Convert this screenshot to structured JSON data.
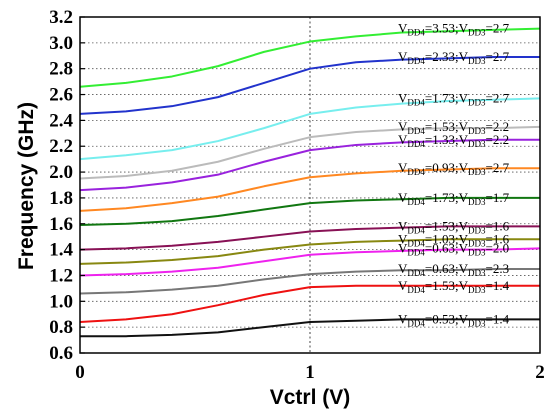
{
  "chart_data": {
    "type": "line",
    "xlabel": "Vctrl (V)",
    "ylabel": "Frequency (GHz)",
    "xlim": [
      0,
      2
    ],
    "ylim": [
      0.6,
      3.2
    ],
    "xticks": [
      "0",
      "1",
      "2"
    ],
    "yticks": [
      "0.6",
      "0.8",
      "1.0",
      "1.2",
      "1.4",
      "1.6",
      "1.8",
      "2.0",
      "2.2",
      "2.4",
      "2.6",
      "2.8",
      "3.0",
      "3.2"
    ],
    "grid": "dotted",
    "reference_line_x": 1,
    "series": [
      {
        "label": "VDD4=3.53;VDD3=2.7",
        "vdd4": "3.53",
        "vdd3": "2.7",
        "color": "#33ee33",
        "x": [
          0,
          0.2,
          0.4,
          0.6,
          0.8,
          1.0,
          1.2,
          1.4,
          1.6,
          1.8,
          2.0
        ],
        "y": [
          2.66,
          2.69,
          2.74,
          2.82,
          2.93,
          3.01,
          3.05,
          3.08,
          3.09,
          3.1,
          3.11
        ]
      },
      {
        "label": "VDD4=2.33;VDD3=2.7",
        "vdd4": "2.33",
        "vdd3": "2.7",
        "color": "#2233cc",
        "x": [
          0,
          0.2,
          0.4,
          0.6,
          0.8,
          1.0,
          1.2,
          1.4,
          1.6,
          1.8,
          2.0
        ],
        "y": [
          2.45,
          2.47,
          2.51,
          2.58,
          2.69,
          2.8,
          2.85,
          2.87,
          2.88,
          2.89,
          2.89
        ]
      },
      {
        "label": "VDD4=1.73;VDD3=2.7",
        "vdd4": "1.73",
        "vdd3": "2.7",
        "color": "#77eeee",
        "x": [
          0,
          0.2,
          0.4,
          0.6,
          0.8,
          1.0,
          1.2,
          1.4,
          1.6,
          1.8,
          2.0
        ],
        "y": [
          2.1,
          2.13,
          2.17,
          2.24,
          2.34,
          2.45,
          2.5,
          2.53,
          2.55,
          2.56,
          2.57
        ]
      },
      {
        "label": "VDD4=1.53;VDD3=2.2",
        "vdd4": "1.53",
        "vdd3": "2.2",
        "color": "#bbbbbb",
        "x": [
          0,
          0.2,
          0.4,
          0.6,
          0.8,
          1.0,
          1.2,
          1.4,
          1.6,
          1.8,
          2.0
        ],
        "y": [
          1.95,
          1.97,
          2.01,
          2.08,
          2.18,
          2.27,
          2.31,
          2.33,
          2.34,
          2.34,
          2.35
        ]
      },
      {
        "label": "VDD4=1.33;VDD3=2.2",
        "vdd4": "1.33",
        "vdd3": "2.2",
        "color": "#9922dd",
        "x": [
          0,
          0.2,
          0.4,
          0.6,
          0.8,
          1.0,
          1.2,
          1.4,
          1.6,
          1.8,
          2.0
        ],
        "y": [
          1.86,
          1.88,
          1.92,
          1.98,
          2.08,
          2.17,
          2.21,
          2.23,
          2.24,
          2.25,
          2.25
        ]
      },
      {
        "label": "VDD4=0.93;VDD3=2.7",
        "vdd4": "0.93",
        "vdd3": "2.7",
        "color": "#ff8822",
        "x": [
          0,
          0.2,
          0.4,
          0.6,
          0.8,
          1.0,
          1.2,
          1.4,
          1.6,
          1.8,
          2.0
        ],
        "y": [
          1.7,
          1.72,
          1.76,
          1.81,
          1.89,
          1.96,
          1.99,
          2.01,
          2.02,
          2.03,
          2.03
        ]
      },
      {
        "label": "VDD4=1.73;VDD3=1.7",
        "vdd4": "1.73",
        "vdd3": "1.7",
        "color": "#117711",
        "x": [
          0,
          0.2,
          0.4,
          0.6,
          0.8,
          1.0,
          1.2,
          1.4,
          1.6,
          1.8,
          2.0
        ],
        "y": [
          1.59,
          1.6,
          1.62,
          1.66,
          1.71,
          1.76,
          1.78,
          1.79,
          1.8,
          1.8,
          1.8
        ]
      },
      {
        "label": "VDD4=1.53;VDD3=1.6",
        "vdd4": "1.53",
        "vdd3": "1.6",
        "color": "#881155",
        "x": [
          0,
          0.2,
          0.4,
          0.6,
          0.8,
          1.0,
          1.2,
          1.4,
          1.6,
          1.8,
          2.0
        ],
        "y": [
          1.4,
          1.41,
          1.43,
          1.46,
          1.5,
          1.54,
          1.56,
          1.57,
          1.58,
          1.58,
          1.58
        ]
      },
      {
        "label": "VDD4=1.03;VDD3=1.6",
        "vdd4": "1.03",
        "vdd3": "1.6",
        "color": "#888811",
        "x": [
          0,
          0.2,
          0.4,
          0.6,
          0.8,
          1.0,
          1.2,
          1.4,
          1.6,
          1.8,
          2.0
        ],
        "y": [
          1.29,
          1.3,
          1.32,
          1.35,
          1.4,
          1.44,
          1.46,
          1.47,
          1.48,
          1.48,
          1.48
        ]
      },
      {
        "label": "VDD4=0.63;VDD3=2.0",
        "vdd4": "0.63",
        "vdd3": "2.0",
        "color": "#ee22ee",
        "x": [
          0,
          0.2,
          0.4,
          0.6,
          0.8,
          1.0,
          1.2,
          1.4,
          1.6,
          1.8,
          2.0
        ],
        "y": [
          1.2,
          1.21,
          1.23,
          1.26,
          1.31,
          1.36,
          1.38,
          1.39,
          1.4,
          1.4,
          1.41
        ]
      },
      {
        "label": "VDD4=0.63;VDD3=2.3",
        "vdd4": "0.63",
        "vdd3": "2.3",
        "color": "#777777",
        "x": [
          0,
          0.2,
          0.4,
          0.6,
          0.8,
          1.0,
          1.2,
          1.4,
          1.6,
          1.8,
          2.0
        ],
        "y": [
          1.06,
          1.07,
          1.09,
          1.12,
          1.17,
          1.21,
          1.23,
          1.24,
          1.24,
          1.25,
          1.25
        ]
      },
      {
        "label": "VDD4=1.53;VDD3=1.4",
        "vdd4": "1.53",
        "vdd3": "1.4",
        "color": "#ee1111",
        "x": [
          0,
          0.2,
          0.4,
          0.6,
          0.8,
          1.0,
          1.2,
          1.4,
          1.6,
          1.8,
          2.0
        ],
        "y": [
          0.84,
          0.86,
          0.9,
          0.97,
          1.05,
          1.11,
          1.12,
          1.12,
          1.12,
          1.12,
          1.12
        ]
      },
      {
        "label": "VDD4=0.53;VDD3=1.4",
        "vdd4": "0.53",
        "vdd3": "1.4",
        "color": "#111111",
        "x": [
          0,
          0.2,
          0.4,
          0.6,
          0.8,
          1.0,
          1.2,
          1.4,
          1.6,
          1.8,
          2.0
        ],
        "y": [
          0.73,
          0.73,
          0.74,
          0.76,
          0.8,
          0.84,
          0.85,
          0.86,
          0.86,
          0.86,
          0.86
        ]
      }
    ]
  }
}
